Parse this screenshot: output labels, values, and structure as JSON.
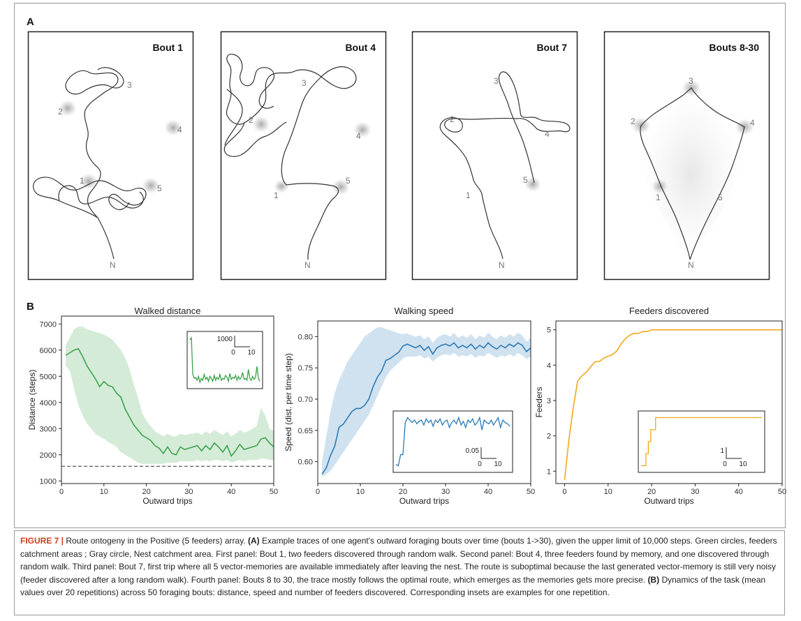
{
  "panels": {
    "a_label": "A",
    "b_label": "B"
  },
  "bouts": [
    {
      "title": "Bout 1",
      "feeders": [
        "1",
        "2",
        "3",
        "4",
        "5"
      ],
      "nest": "N"
    },
    {
      "title": "Bout 4",
      "feeders": [
        "1",
        "2",
        "3",
        "4",
        "5"
      ],
      "nest": "N"
    },
    {
      "title": "Bout 7",
      "feeders": [
        "1",
        "2",
        "3",
        "4",
        "5"
      ],
      "nest": "N"
    },
    {
      "title": "Bouts 8-30",
      "feeders": [
        "1",
        "2",
        "3",
        "4",
        "5"
      ],
      "nest": "N"
    }
  ],
  "colors": {
    "green": "#3aa24a",
    "blue": "#2a7ab8",
    "orange": "#f2a818",
    "trace": "#333333",
    "caption_highlight": "#d23c1e"
  },
  "chart_data": [
    {
      "type": "line",
      "title": "Walked distance",
      "xlabel": "Outward trips",
      "ylabel": "Distance (steps)",
      "xlim": [
        0,
        50
      ],
      "ylim": [
        900,
        7300
      ],
      "xticks": [
        "0",
        "10",
        "20",
        "30",
        "40",
        "50"
      ],
      "yticks": [
        "1000",
        "2000",
        "3000",
        "4000",
        "5000",
        "6000",
        "7000"
      ],
      "reference_line_y": 1560,
      "series": [
        {
          "x": [
            1,
            2,
            3,
            4,
            5,
            6,
            7,
            8,
            9,
            10,
            11,
            12,
            13,
            14,
            15,
            16,
            17,
            18,
            19,
            20,
            21,
            22,
            23,
            24,
            25,
            26,
            27,
            28,
            29,
            30,
            31,
            32,
            33,
            34,
            35,
            36,
            37,
            38,
            39,
            40,
            41,
            42,
            43,
            44,
            45,
            46,
            47,
            48,
            49,
            50
          ],
          "values": [
            5800,
            5900,
            6000,
            6050,
            5750,
            5400,
            5150,
            4900,
            4600,
            4800,
            4650,
            4600,
            4350,
            4200,
            3750,
            3450,
            3150,
            2950,
            2750,
            2650,
            2550,
            2350,
            2250,
            2050,
            2300,
            2050,
            2000,
            2300,
            2200,
            2250,
            2300,
            2350,
            2150,
            2350,
            2200,
            2450,
            2300,
            2100,
            2350,
            1950,
            2150,
            2400,
            2200,
            2250,
            2300,
            2350,
            2600,
            2650,
            2450,
            2300
          ],
          "band_lower": [
            5400,
            5200,
            4500,
            3900,
            3500,
            3200,
            3000,
            2800,
            2700,
            2600,
            2500,
            2400,
            2300,
            2100,
            2000,
            1900,
            1800,
            1700,
            1650,
            1650,
            1650,
            1650,
            1650,
            1650,
            1700,
            1700,
            1700,
            1750,
            1750,
            1750,
            1750,
            1800,
            1750,
            1800,
            1750,
            1800,
            1800,
            1750,
            1800,
            1700,
            1750,
            1800,
            1750,
            1800,
            1800,
            1800,
            1850,
            1850,
            1800,
            1800
          ],
          "band_upper": [
            6200,
            6500,
            6800,
            6900,
            6900,
            6800,
            6750,
            6700,
            6650,
            6600,
            6500,
            6400,
            6200,
            6000,
            5700,
            5300,
            4700,
            4200,
            3600,
            3300,
            3100,
            2900,
            2800,
            2700,
            2800,
            2700,
            2700,
            2800,
            2750,
            2800,
            2800,
            2850,
            2750,
            2900,
            2800,
            2950,
            2850,
            2750,
            2900,
            2700,
            2800,
            2950,
            2850,
            2900,
            3000,
            3100,
            3800,
            3500,
            3000,
            2900
          ]
        }
      ],
      "inset": {
        "scale_y_label": "1000",
        "scale_x_from": "0",
        "scale_x_to": "10",
        "values": [
          6600,
          6800,
          3100,
          2700,
          2800,
          2500,
          2900,
          2300,
          2700,
          2500,
          3100,
          2600,
          2800,
          2400,
          2900,
          2700,
          2400,
          3000,
          2500,
          2800,
          2600,
          3100,
          2500,
          2700,
          2600,
          3000,
          2800,
          2400,
          3200,
          2600,
          2800,
          2700,
          3000,
          2500,
          2900,
          2600,
          2800,
          3300,
          2600,
          2700,
          2500,
          3600,
          2700,
          2500,
          2900,
          2600,
          2800,
          3900,
          2700,
          2400
        ]
      }
    },
    {
      "type": "line",
      "title": "Walking speed",
      "xlabel": "Outward trips",
      "ylabel": "Speed (dist. per time step)",
      "xlim": [
        0,
        50
      ],
      "ylim": [
        0.565,
        0.825
      ],
      "xticks": [
        "0",
        "10",
        "20",
        "30",
        "40",
        "50"
      ],
      "yticks": [
        "0.60",
        "0.65",
        "0.70",
        "0.75",
        "0.80"
      ],
      "series": [
        {
          "x": [
            1,
            2,
            3,
            4,
            5,
            6,
            7,
            8,
            9,
            10,
            11,
            12,
            13,
            14,
            15,
            16,
            17,
            18,
            19,
            20,
            21,
            22,
            23,
            24,
            25,
            26,
            27,
            28,
            29,
            30,
            31,
            32,
            33,
            34,
            35,
            36,
            37,
            38,
            39,
            40,
            41,
            42,
            43,
            44,
            45,
            46,
            47,
            48,
            49,
            50
          ],
          "values": [
            0.58,
            0.59,
            0.61,
            0.625,
            0.655,
            0.66,
            0.67,
            0.68,
            0.685,
            0.685,
            0.69,
            0.7,
            0.72,
            0.735,
            0.745,
            0.762,
            0.765,
            0.77,
            0.775,
            0.785,
            0.788,
            0.785,
            0.782,
            0.786,
            0.778,
            0.784,
            0.772,
            0.782,
            0.786,
            0.788,
            0.785,
            0.79,
            0.782,
            0.786,
            0.782,
            0.788,
            0.78,
            0.786,
            0.782,
            0.79,
            0.784,
            0.78,
            0.786,
            0.782,
            0.788,
            0.784,
            0.79,
            0.786,
            0.776,
            0.782
          ],
          "band_lower": [
            0.575,
            0.58,
            0.585,
            0.595,
            0.605,
            0.615,
            0.625,
            0.635,
            0.645,
            0.655,
            0.665,
            0.675,
            0.69,
            0.705,
            0.72,
            0.735,
            0.745,
            0.752,
            0.758,
            0.765,
            0.768,
            0.768,
            0.768,
            0.77,
            0.765,
            0.768,
            0.76,
            0.766,
            0.77,
            0.772,
            0.77,
            0.774,
            0.768,
            0.77,
            0.768,
            0.772,
            0.766,
            0.77,
            0.768,
            0.774,
            0.77,
            0.766,
            0.77,
            0.768,
            0.772,
            0.768,
            0.774,
            0.77,
            0.764,
            0.768
          ],
          "band_upper": [
            0.6,
            0.64,
            0.68,
            0.71,
            0.73,
            0.745,
            0.76,
            0.77,
            0.78,
            0.79,
            0.8,
            0.805,
            0.81,
            0.815,
            0.815,
            0.812,
            0.81,
            0.808,
            0.805,
            0.804,
            0.805,
            0.802,
            0.8,
            0.802,
            0.796,
            0.8,
            0.79,
            0.798,
            0.802,
            0.804,
            0.8,
            0.806,
            0.798,
            0.802,
            0.798,
            0.804,
            0.796,
            0.802,
            0.798,
            0.806,
            0.8,
            0.796,
            0.802,
            0.798,
            0.804,
            0.8,
            0.806,
            0.802,
            0.792,
            0.798
          ]
        }
      ],
      "inset": {
        "scale_y_label": "0.05",
        "scale_x_from": "0",
        "scale_x_to": "10",
        "values": [
          0.62,
          0.615,
          0.66,
          0.66,
          0.79,
          0.81,
          0.8,
          0.79,
          0.8,
          0.785,
          0.795,
          0.8,
          0.78,
          0.805,
          0.79,
          0.8,
          0.775,
          0.8,
          0.79,
          0.805,
          0.78,
          0.795,
          0.8,
          0.77,
          0.79,
          0.8,
          0.785,
          0.81,
          0.78,
          0.795,
          0.77,
          0.8,
          0.79,
          0.805,
          0.78,
          0.79,
          0.81,
          0.76,
          0.8,
          0.79,
          0.785,
          0.8,
          0.78,
          0.795,
          0.81,
          0.77,
          0.8,
          0.79,
          0.785,
          0.775
        ]
      }
    },
    {
      "type": "line",
      "title": "Feeders discovered",
      "xlabel": "Outward trips",
      "ylabel": "Feeders",
      "xlim": [
        -2,
        50
      ],
      "ylim": [
        0.65,
        5.25
      ],
      "xticks": [
        "0",
        "10",
        "20",
        "30",
        "40",
        "50"
      ],
      "yticks": [
        "1",
        "2",
        "3",
        "4",
        "5"
      ],
      "series": [
        {
          "x": [
            0,
            1,
            2,
            3,
            4,
            5,
            6,
            7,
            8,
            9,
            10,
            11,
            12,
            13,
            14,
            15,
            16,
            17,
            18,
            19,
            20,
            21,
            22,
            23,
            24,
            25,
            26,
            27,
            28,
            29,
            30,
            31,
            32,
            33,
            34,
            35,
            36,
            37,
            38,
            39,
            40,
            41,
            42,
            43,
            44,
            45,
            46,
            47,
            48,
            49,
            50
          ],
          "values": [
            0.75,
            1.9,
            2.8,
            3.55,
            3.7,
            3.8,
            3.95,
            4.1,
            4.1,
            4.2,
            4.25,
            4.3,
            4.4,
            4.6,
            4.75,
            4.85,
            4.9,
            4.9,
            4.95,
            4.95,
            5.0,
            5.0,
            5.0,
            5.0,
            5.0,
            5.0,
            5.0,
            5.0,
            5.0,
            5.0,
            5.0,
            5.0,
            5.0,
            5.0,
            5.0,
            5.0,
            5.0,
            5.0,
            5.0,
            5.0,
            5.0,
            5.0,
            5.0,
            5.0,
            5.0,
            5.0,
            5.0,
            5.0,
            5.0,
            5.0,
            5.0
          ]
        }
      ],
      "inset": {
        "scale_y_label": "1",
        "scale_x_from": "0",
        "scale_x_to": "10",
        "values": [
          1,
          1,
          2,
          3,
          4,
          4,
          5,
          5,
          5,
          5,
          5,
          5,
          5,
          5,
          5,
          5,
          5,
          5,
          5,
          5,
          5,
          5,
          5,
          5,
          5,
          5,
          5,
          5,
          5,
          5,
          5,
          5,
          5,
          5,
          5,
          5,
          5,
          5,
          5,
          5,
          5,
          5,
          5,
          5,
          5,
          5,
          5,
          5,
          5,
          5,
          5
        ]
      }
    }
  ],
  "caption": {
    "fig_label": "FIGURE 7 |",
    "intro": " Route ontogeny in the Positive (5 feeders) array. ",
    "a_mark": "(A)",
    "text_a": " Example traces of one agent's outward foraging bouts over time (bouts 1->30), given the upper limit of 10,000 steps. Green circles, feeders catchment areas ; Gray circle, Nest catchment area. First panel: Bout 1, two feeders discovered through random walk. Second panel: Bout 4, three feeders found by memory, and one discovered through random walk. Third panel: Bout 7, first trip where all 5 vector-memories are available immediately after leaving the nest. The route is suboptimal because the last generated vector-memory is still very noisy (feeder discovered after a long random walk). Fourth panel: Bouts 8 to 30, the trace mostly follows the optimal route, which emerges as the memories gets more precise. ",
    "b_mark": "(B)",
    "text_b": " Dynamics of the task (mean values over 20 repetitions) across 50 foraging bouts: distance, speed and number of feeders discovered. Corresponding insets are examples for one repetition."
  }
}
